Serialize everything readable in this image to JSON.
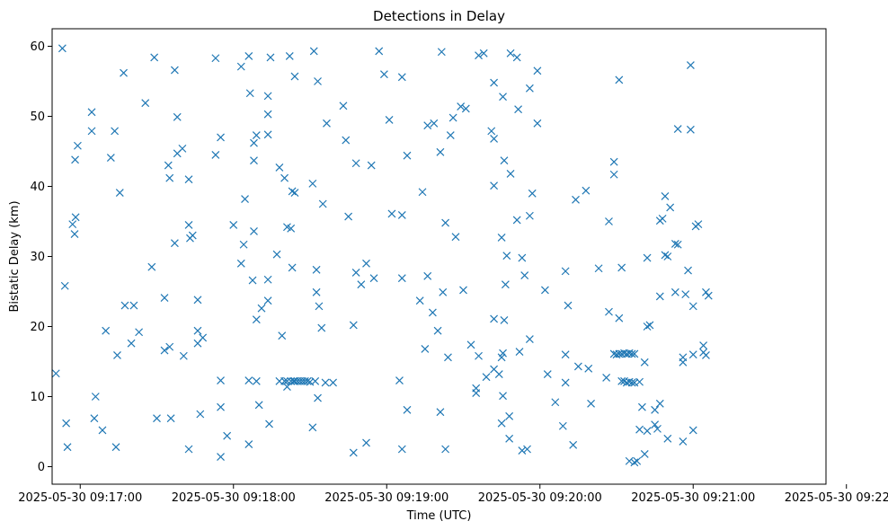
{
  "chart_data": {
    "type": "scatter",
    "title": "Detections in Delay",
    "xlabel": "Time (UTC)",
    "ylabel": "Bistatic Delay (km)",
    "x_unit": "seconds since 2025-05-30 09:17:00 UTC",
    "xlim": [
      -11,
      292
    ],
    "ylim": [
      -2.5,
      62.5
    ],
    "grid": false,
    "marker": "x",
    "color": "#1f77b4",
    "x_ticks": [
      {
        "value": 0,
        "label": "2025-05-30 09:17:00"
      },
      {
        "value": 60,
        "label": "2025-05-30 09:18:00"
      },
      {
        "value": 120,
        "label": "2025-05-30 09:19:00"
      },
      {
        "value": 180,
        "label": "2025-05-30 09:20:00"
      },
      {
        "value": 240,
        "label": "2025-05-30 09:21:00"
      },
      {
        "value": 300,
        "label": "2025-05-30 09:22:00"
      }
    ],
    "y_ticks": [
      {
        "value": 0,
        "label": "0"
      },
      {
        "value": 10,
        "label": "10"
      },
      {
        "value": 20,
        "label": "20"
      },
      {
        "value": 30,
        "label": "30"
      },
      {
        "value": 40,
        "label": "40"
      },
      {
        "value": 50,
        "label": "50"
      },
      {
        "value": 60,
        "label": "60"
      }
    ],
    "series": [
      {
        "name": "detections",
        "points": [
          [
            -9.5,
            13.3
          ],
          [
            -7,
            59.7
          ],
          [
            -6,
            25.8
          ],
          [
            -5.5,
            6.2
          ],
          [
            -5,
            2.8
          ],
          [
            -3,
            34.6
          ],
          [
            -2.2,
            33.2
          ],
          [
            -2,
            43.8
          ],
          [
            -1.8,
            35.6
          ],
          [
            -1,
            45.8
          ],
          [
            4.5,
            50.6
          ],
          [
            4.5,
            47.9
          ],
          [
            5.5,
            6.9
          ],
          [
            6,
            10
          ],
          [
            8.7,
            5.2
          ],
          [
            10,
            19.4
          ],
          [
            12,
            44.1
          ],
          [
            13.5,
            47.9
          ],
          [
            14,
            2.8
          ],
          [
            14.5,
            15.9
          ],
          [
            15.5,
            39.1
          ],
          [
            17.5,
            23
          ],
          [
            17,
            56.2
          ],
          [
            20,
            17.6
          ],
          [
            21,
            23
          ],
          [
            23,
            19.2
          ],
          [
            25.5,
            51.9
          ],
          [
            28,
            28.5
          ],
          [
            29,
            58.4
          ],
          [
            30,
            6.9
          ],
          [
            33,
            24.1
          ],
          [
            33,
            16.6
          ],
          [
            34.5,
            43
          ],
          [
            35,
            17.1
          ],
          [
            35,
            41.2
          ],
          [
            35.5,
            6.9
          ],
          [
            37,
            31.9
          ],
          [
            37,
            56.6
          ],
          [
            38,
            49.9
          ],
          [
            38,
            44.7
          ],
          [
            40,
            45.4
          ],
          [
            40.5,
            15.8
          ],
          [
            42.5,
            41
          ],
          [
            42.5,
            34.5
          ],
          [
            43,
            32.6
          ],
          [
            42.5,
            2.5
          ],
          [
            44,
            33
          ],
          [
            46,
            23.8
          ],
          [
            46,
            17.6
          ],
          [
            46,
            19.4
          ],
          [
            47,
            7.5
          ],
          [
            48,
            18.4
          ],
          [
            53,
            44.5
          ],
          [
            53,
            58.3
          ],
          [
            55,
            47
          ],
          [
            55,
            12.3
          ],
          [
            55,
            8.5
          ],
          [
            55,
            1.4
          ],
          [
            57.5,
            4.4
          ],
          [
            60,
            34.5
          ],
          [
            63,
            29
          ],
          [
            63,
            57.1
          ],
          [
            64,
            31.7
          ],
          [
            64.5,
            38.2
          ],
          [
            66,
            3.2
          ],
          [
            66,
            12.3
          ],
          [
            66,
            58.6
          ],
          [
            66.5,
            53.3
          ],
          [
            67.5,
            26.6
          ],
          [
            68,
            46.2
          ],
          [
            68,
            33.6
          ],
          [
            68,
            43.7
          ],
          [
            69,
            47.3
          ],
          [
            69,
            21
          ],
          [
            69,
            12.2
          ],
          [
            70,
            8.8
          ],
          [
            71,
            22.6
          ],
          [
            73.5,
            23.7
          ],
          [
            73.5,
            52.9
          ],
          [
            73.5,
            50.3
          ],
          [
            73.5,
            47.4
          ],
          [
            73.5,
            26.7
          ],
          [
            74,
            6.1
          ],
          [
            74.5,
            58.4
          ],
          [
            77,
            30.3
          ],
          [
            78,
            42.7
          ],
          [
            78,
            12.2
          ],
          [
            79,
            18.7
          ],
          [
            80,
            41.2
          ],
          [
            80,
            12.2
          ],
          [
            81,
            34.2
          ],
          [
            81,
            12.2
          ],
          [
            81,
            11.4
          ],
          [
            82,
            58.6
          ],
          [
            82.5,
            12.2
          ],
          [
            82.5,
            34
          ],
          [
            83,
            28.4
          ],
          [
            83,
            39.3
          ],
          [
            83.5,
            12.2
          ],
          [
            84,
            55.7
          ],
          [
            84,
            12.2
          ],
          [
            84,
            39.1
          ],
          [
            85,
            12.2
          ],
          [
            86,
            12.2
          ],
          [
            87,
            12.2
          ],
          [
            88,
            12.2
          ],
          [
            89,
            12.2
          ],
          [
            90,
            12.1
          ],
          [
            91,
            40.4
          ],
          [
            91,
            5.6
          ],
          [
            91.5,
            59.3
          ],
          [
            92,
            12.2
          ],
          [
            92.5,
            28.1
          ],
          [
            92.5,
            24.9
          ],
          [
            93,
            9.8
          ],
          [
            93,
            55
          ],
          [
            93.5,
            22.9
          ],
          [
            94.5,
            19.8
          ],
          [
            95,
            37.5
          ],
          [
            96,
            12
          ],
          [
            96.5,
            49
          ],
          [
            99,
            12
          ],
          [
            103,
            51.5
          ],
          [
            104,
            46.6
          ],
          [
            105,
            35.7
          ],
          [
            107,
            2
          ],
          [
            107,
            20.2
          ],
          [
            108,
            27.7
          ],
          [
            108,
            43.3
          ],
          [
            110,
            26
          ],
          [
            112,
            3.4
          ],
          [
            112,
            29
          ],
          [
            114,
            43
          ],
          [
            115,
            26.9
          ],
          [
            117,
            59.3
          ],
          [
            119,
            56
          ],
          [
            121,
            49.5
          ],
          [
            122,
            36.1
          ],
          [
            125,
            12.3
          ],
          [
            126,
            35.9
          ],
          [
            126,
            26.9
          ],
          [
            126,
            55.6
          ],
          [
            126,
            2.5
          ],
          [
            128,
            44.4
          ],
          [
            128,
            8.1
          ],
          [
            133,
            23.7
          ],
          [
            134,
            39.2
          ],
          [
            135,
            16.8
          ],
          [
            136,
            27.2
          ],
          [
            136,
            48.7
          ],
          [
            138,
            22
          ],
          [
            138.5,
            49
          ],
          [
            140,
            19.4
          ],
          [
            141,
            44.9
          ],
          [
            141,
            7.8
          ],
          [
            141.5,
            59.2
          ],
          [
            142,
            24.9
          ],
          [
            143,
            34.8
          ],
          [
            143,
            2.5
          ],
          [
            144,
            15.6
          ],
          [
            145,
            47.3
          ],
          [
            146,
            49.8
          ],
          [
            147,
            32.8
          ],
          [
            149,
            51.4
          ],
          [
            150,
            25.2
          ],
          [
            151,
            51.1
          ],
          [
            153,
            17.4
          ],
          [
            155,
            10.5
          ],
          [
            155,
            11.2
          ],
          [
            156,
            15.8
          ],
          [
            156,
            58.7
          ],
          [
            158,
            59
          ],
          [
            159,
            12.8
          ],
          [
            161,
            47.9
          ],
          [
            162,
            46.8
          ],
          [
            162,
            40.1
          ],
          [
            162,
            21.1
          ],
          [
            162,
            13.9
          ],
          [
            162,
            54.8
          ],
          [
            164,
            13.2
          ],
          [
            165,
            32.7
          ],
          [
            165,
            6.2
          ],
          [
            165,
            15.6
          ],
          [
            165.5,
            52.8
          ],
          [
            165.5,
            16.2
          ],
          [
            165.5,
            10.1
          ],
          [
            166,
            43.7
          ],
          [
            166,
            20.9
          ],
          [
            166.5,
            26
          ],
          [
            167,
            30.1
          ],
          [
            168,
            7.2
          ],
          [
            168,
            4
          ],
          [
            168.5,
            41.8
          ],
          [
            168.5,
            59
          ],
          [
            171,
            35.2
          ],
          [
            171,
            58.4
          ],
          [
            171.5,
            51
          ],
          [
            172,
            16.4
          ],
          [
            173,
            29.8
          ],
          [
            173,
            2.3
          ],
          [
            174,
            27.3
          ],
          [
            175,
            2.5
          ],
          [
            176,
            35.8
          ],
          [
            176,
            18.2
          ],
          [
            176,
            54
          ],
          [
            177,
            39
          ],
          [
            179,
            49
          ],
          [
            179,
            56.5
          ],
          [
            182,
            25.2
          ],
          [
            183,
            13.2
          ],
          [
            186,
            9.2
          ],
          [
            189,
            5.8
          ],
          [
            190,
            16
          ],
          [
            190,
            12
          ],
          [
            190,
            27.9
          ],
          [
            191,
            23
          ],
          [
            193,
            3.1
          ],
          [
            194,
            38.1
          ],
          [
            195,
            14.3
          ],
          [
            198,
            39.4
          ],
          [
            199,
            14
          ],
          [
            200,
            9
          ],
          [
            203,
            28.3
          ],
          [
            206,
            12.7
          ],
          [
            207,
            35
          ],
          [
            207,
            22.1
          ],
          [
            209,
            16.1
          ],
          [
            209,
            43.5
          ],
          [
            209,
            41.7
          ],
          [
            210,
            16
          ],
          [
            211,
            21.2
          ],
          [
            211,
            16.1
          ],
          [
            211,
            55.2
          ],
          [
            212,
            16.1
          ],
          [
            212,
            28.4
          ],
          [
            212,
            12.2
          ],
          [
            213,
            16.2
          ],
          [
            213,
            12.2
          ],
          [
            214,
            16.1
          ],
          [
            214,
            12
          ],
          [
            215,
            16.2
          ],
          [
            215,
            12.1
          ],
          [
            215,
            0.8
          ],
          [
            216,
            12
          ],
          [
            216,
            16.1
          ],
          [
            217,
            16.1
          ],
          [
            217,
            12
          ],
          [
            217,
            0.6
          ],
          [
            218,
            0.8
          ],
          [
            219,
            12.1
          ],
          [
            219,
            5.3
          ],
          [
            220,
            8.5
          ],
          [
            221,
            14.9
          ],
          [
            221,
            1.8
          ],
          [
            222,
            29.8
          ],
          [
            222,
            20
          ],
          [
            222,
            5.1
          ],
          [
            223,
            20.2
          ],
          [
            225,
            8.1
          ],
          [
            225,
            6
          ],
          [
            226,
            5.4
          ],
          [
            227,
            9
          ],
          [
            227,
            35.1
          ],
          [
            227,
            24.3
          ],
          [
            228,
            35.4
          ],
          [
            229,
            38.6
          ],
          [
            229,
            30.2
          ],
          [
            230,
            30
          ],
          [
            230,
            4
          ],
          [
            231,
            37
          ],
          [
            233,
            24.9
          ],
          [
            233,
            31.8
          ],
          [
            234,
            31.7
          ],
          [
            234,
            48.2
          ],
          [
            236,
            15.6
          ],
          [
            236,
            14.9
          ],
          [
            236,
            3.6
          ],
          [
            237,
            24.6
          ],
          [
            238,
            28
          ],
          [
            239,
            57.3
          ],
          [
            239,
            48.1
          ],
          [
            240,
            5.2
          ],
          [
            240,
            22.9
          ],
          [
            240,
            16
          ],
          [
            241,
            34.3
          ],
          [
            242,
            34.6
          ],
          [
            244,
            17.3
          ],
          [
            244,
            16.3
          ],
          [
            245,
            24.9
          ],
          [
            245,
            15.9
          ],
          [
            246,
            24.4
          ]
        ]
      }
    ]
  }
}
